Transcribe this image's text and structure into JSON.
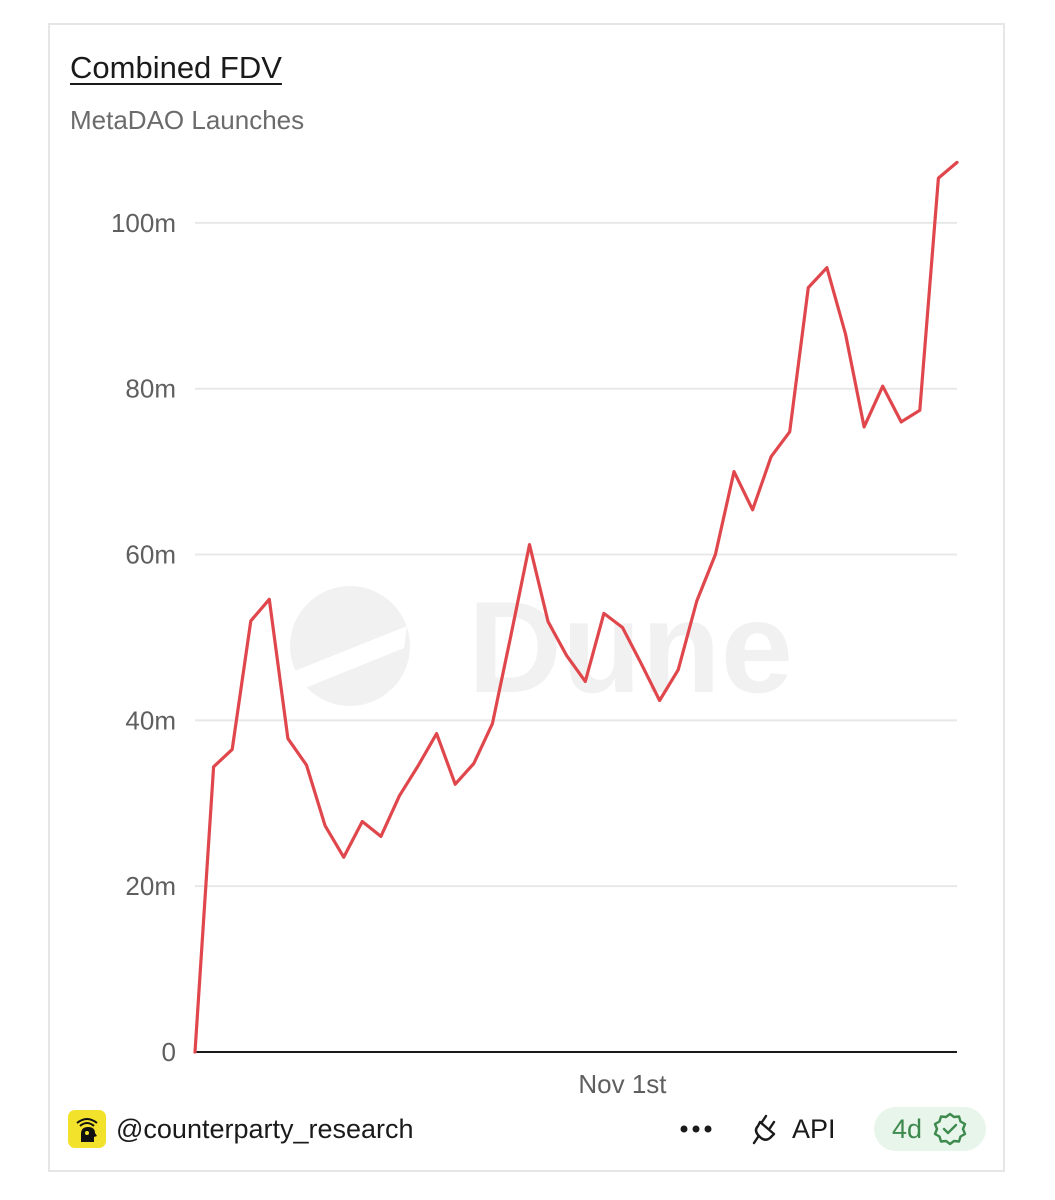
{
  "header": {
    "title": "Combined FDV",
    "subtitle": "MetaDAO Launches"
  },
  "watermark": {
    "text": "Dune"
  },
  "footer": {
    "author": "@counterparty_research",
    "more_label": "•••",
    "api_label": "API",
    "age_label": "4d"
  },
  "colors": {
    "line": "#e0474c",
    "grid": "#e8e8e8",
    "axis": "#1a1a1a",
    "tick_text": "#5f5f5f",
    "badge_bg": "#e8f5ea",
    "badge_text": "#3d8a4e",
    "avatar_bg": "#f2e22b"
  },
  "icons": {
    "avatar": "counterparty-logo-icon",
    "more": "more-dots-icon",
    "api": "plug-icon",
    "verified": "verified-check-icon"
  },
  "chart_data": {
    "type": "line",
    "title": "Combined FDV",
    "subtitle": "MetaDAO Launches",
    "xlabel": "",
    "ylabel": "",
    "x_tick_labels": [
      {
        "label": "Nov 1st",
        "index": 23
      }
    ],
    "ylim": [
      0,
      110000000
    ],
    "y_ticks": [
      0,
      20000000,
      40000000,
      60000000,
      80000000,
      100000000
    ],
    "y_tick_labels": [
      "0",
      "20m",
      "40m",
      "60m",
      "80m",
      "100m"
    ],
    "grid": true,
    "legend": "none",
    "series": [
      {
        "values": [
          0,
          34400000,
          36500000,
          52000000,
          54600000,
          37800000,
          34600000,
          27300000,
          23500000,
          27800000,
          26000000,
          30900000,
          34500000,
          38400000,
          32300000,
          34800000,
          39600000,
          50300000,
          61200000,
          51900000,
          47800000,
          44700000,
          52900000,
          51200000,
          46900000,
          42400000,
          46100000,
          54400000,
          60000000,
          70000000,
          65400000,
          71800000,
          74800000,
          92200000,
          94600000,
          86600000,
          75400000,
          80300000,
          76000000,
          77400000,
          105400000,
          107300000
        ]
      }
    ]
  }
}
